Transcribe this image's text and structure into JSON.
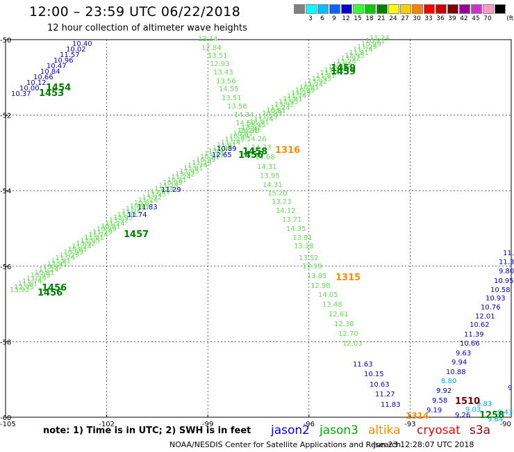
{
  "header": {
    "title": "12:00 – 23:59 UTC 06/22/2018",
    "subtitle": "12 hour collection of altimeter wave heights"
  },
  "wave_scale": {
    "unit": "(ft)",
    "swatches": [
      {
        "color": "#808080",
        "label": ""
      },
      {
        "color": "#00ffff",
        "label": "3"
      },
      {
        "color": "#00bfff",
        "label": "6"
      },
      {
        "color": "#0066ff",
        "label": "9"
      },
      {
        "color": "#0000cc",
        "label": "12"
      },
      {
        "color": "#33ff33",
        "label": "15"
      },
      {
        "color": "#00cc00",
        "label": "18"
      },
      {
        "color": "#008000",
        "label": "21"
      },
      {
        "color": "#ffff00",
        "label": "24"
      },
      {
        "color": "#ffcc00",
        "label": "27"
      },
      {
        "color": "#ff8000",
        "label": "30"
      },
      {
        "color": "#ff0000",
        "label": "33"
      },
      {
        "color": "#cc0000",
        "label": "36"
      },
      {
        "color": "#800000",
        "label": "39"
      },
      {
        "color": "#990099",
        "label": "42"
      },
      {
        "color": "#cc33cc",
        "label": "45"
      },
      {
        "color": "#ff99cc",
        "label": "70"
      },
      {
        "color": "#000000",
        "label": ""
      }
    ]
  },
  "map": {
    "lon_range": [
      -105,
      -90
    ],
    "lat_range": [
      -60,
      -50
    ],
    "lon_ticks": [
      "-105",
      "-102",
      "-99",
      "-96",
      "-93",
      "-90"
    ],
    "lat_ticks": [
      "-50",
      "-52",
      "-54",
      "-56",
      "-58",
      "-60"
    ]
  },
  "tracks": {
    "jason3_asc_values": [
      "13.92",
      "12.95",
      "11.81",
      "11.74",
      "11.29",
      "10.99",
      "10.81",
      "11.24"
    ],
    "jason3_desc_values": [
      "13.14",
      "12.84",
      "13.51",
      "12.93",
      "13.43",
      "13.56",
      "14.55",
      "13.51",
      "13.58",
      "14.34",
      "14.50",
      "14.18",
      "14.26",
      "14.23",
      "14.68",
      "14.31",
      "13.95",
      "14.31",
      "15.20",
      "13.23",
      "14.12",
      "13.71",
      "14.35",
      "13.91",
      "13.18",
      "13.52",
      "13.99",
      "13.85",
      "12.98",
      "14.05",
      "13.48",
      "12.61",
      "12.38",
      "12.70",
      "12.03"
    ],
    "jason2_nw_values": [
      "10.40",
      "10.02",
      "11.57",
      "10.96",
      "10.47",
      "10.84",
      "10.66",
      "10.12",
      "10.00",
      "10.37"
    ],
    "jason2_desc_tail": [
      "11.63",
      "10.15",
      "10.63",
      "11.27",
      "11.83"
    ],
    "jason2_se_values": [
      "11.3",
      "11.3",
      "9.80",
      "10.95",
      "10.58",
      "10.93",
      "10.76",
      "12.01",
      "10.62",
      "11.39",
      "10.66",
      "9.63",
      "9.94",
      "10.88",
      "8.80",
      "9.92",
      "9.58",
      "9.19",
      "9.26",
      "9.03",
      "9.64",
      "9.43",
      "9"
    ],
    "crossing_values": [
      "10.89",
      "12.65"
    ]
  },
  "time_labels": {
    "t1454": "1454",
    "t1453": "1453",
    "t1459": "1459",
    "t1458": "1458",
    "t1456a": "1456",
    "t1316": "1316",
    "t1457": "1457",
    "t1456b": "1456",
    "t1315": "1315",
    "t1314": "1314",
    "t1510": "1510",
    "t1258": "1258"
  },
  "legend": {
    "note": "note: 1) Time is in UTC; 2) SWH is in feet",
    "sats": [
      {
        "name": "jason2",
        "color": "#0000ff"
      },
      {
        "name": "jason3",
        "color": "#00aa00"
      },
      {
        "name": "altika",
        "color": "#ff8c00"
      },
      {
        "name": "cryosat",
        "color": "#ff0000"
      },
      {
        "name": "s3a",
        "color": "#a00000"
      }
    ]
  },
  "footer": {
    "credit": "NOAA/NESDIS Center for Satellite Applications and Research",
    "timestamp": "Jun 23 12:28:07 UTC 2018"
  }
}
